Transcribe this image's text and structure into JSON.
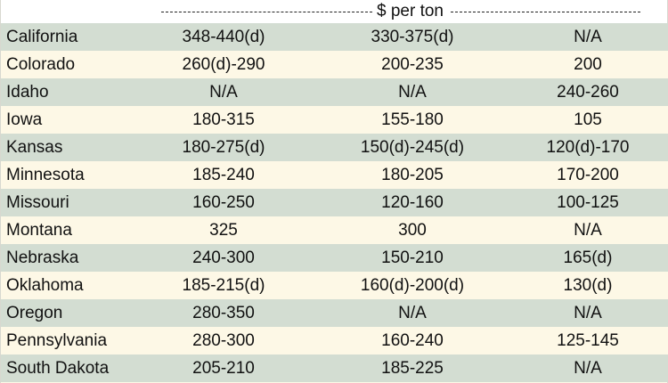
{
  "header": {
    "unit_label": "$ per ton"
  },
  "table": {
    "rows": [
      {
        "state": "California",
        "a": "348-440(d)",
        "b": "330-375(d)",
        "c": "N/A"
      },
      {
        "state": "Colorado",
        "a": "260(d)-290",
        "b": "200-235",
        "c": "200"
      },
      {
        "state": "Idaho",
        "a": "N/A",
        "b": "N/A",
        "c": "240-260"
      },
      {
        "state": "Iowa",
        "a": "180-315",
        "b": "155-180",
        "c": "105"
      },
      {
        "state": "Kansas",
        "a": "180-275(d)",
        "b": "150(d)-245(d)",
        "c": "120(d)-170"
      },
      {
        "state": "Minnesota",
        "a": "185-240",
        "b": "180-205",
        "c": "170-200"
      },
      {
        "state": "Missouri",
        "a": "160-250",
        "b": "120-160",
        "c": "100-125"
      },
      {
        "state": "Montana",
        "a": "325",
        "b": "300",
        "c": "N/A"
      },
      {
        "state": "Nebraska",
        "a": "240-300",
        "b": "150-210",
        "c": "165(d)"
      },
      {
        "state": "Oklahoma",
        "a": "185-215(d)",
        "b": "160(d)-200(d)",
        "c": "130(d)"
      },
      {
        "state": "Oregon",
        "a": "280-350",
        "b": "N/A",
        "c": "N/A"
      },
      {
        "state": "Pennsylvania",
        "a": "280-300",
        "b": "160-240",
        "c": "125-145"
      },
      {
        "state": "South Dakota",
        "a": "205-210",
        "b": "185-225",
        "c": "N/A"
      }
    ]
  }
}
